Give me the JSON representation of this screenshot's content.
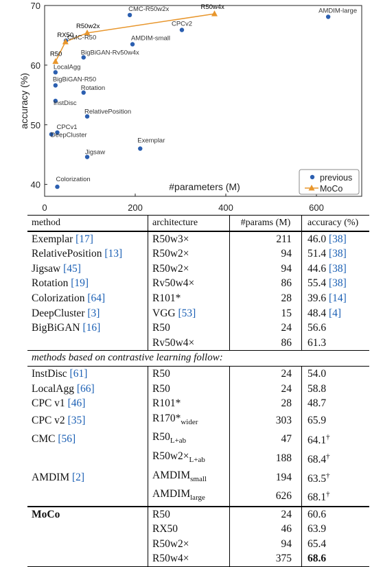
{
  "chart_data": {
    "type": "scatter",
    "xlabel": "#parameters (M)",
    "ylabel": "accuracy (%)",
    "xlim": [
      0,
      700
    ],
    "ylim": [
      38,
      70
    ],
    "xticks": [
      "0",
      "200",
      "400",
      "600"
    ],
    "yticks": [
      "40",
      "50",
      "60",
      "70"
    ],
    "legend": {
      "placement": "bottom-right",
      "entries": [
        "previous",
        "MoCo"
      ]
    },
    "colors": {
      "previous": "#2b5fb0",
      "MoCo": "#e8962c"
    },
    "series": [
      {
        "name": "previous",
        "marker": "circle",
        "points": [
          {
            "label": "Exemplar",
            "x": 211,
            "y": 46.0
          },
          {
            "label": "RelativePosition",
            "x": 94,
            "y": 51.4
          },
          {
            "label": "Jigsaw",
            "x": 94,
            "y": 44.6
          },
          {
            "label": "Rotation",
            "x": 86,
            "y": 55.4
          },
          {
            "label": "Colorization",
            "x": 28,
            "y": 39.6
          },
          {
            "label": "DeepCluster",
            "x": 15,
            "y": 48.4
          },
          {
            "label": "BigBiGAN-R50",
            "x": 24,
            "y": 56.6
          },
          {
            "label": "BigBiGAN-Rv50w4x",
            "x": 86,
            "y": 61.3
          },
          {
            "label": "InstDisc",
            "x": 24,
            "y": 54.0
          },
          {
            "label": "LocalAgg",
            "x": 24,
            "y": 58.8
          },
          {
            "label": "CPCv1",
            "x": 28,
            "y": 48.7
          },
          {
            "label": "CPCv2",
            "x": 303,
            "y": 65.9
          },
          {
            "label": "CMC-R50",
            "x": 47,
            "y": 64.1
          },
          {
            "label": "CMC-R50w2x",
            "x": 188,
            "y": 68.4
          },
          {
            "label": "AMDIM-small",
            "x": 194,
            "y": 63.5
          },
          {
            "label": "AMDIM-large",
            "x": 626,
            "y": 68.1
          }
        ]
      },
      {
        "name": "MoCo",
        "marker": "triangle",
        "line": true,
        "points": [
          {
            "label": "R50",
            "x": 24,
            "y": 60.6
          },
          {
            "label": "RX50",
            "x": 46,
            "y": 63.9
          },
          {
            "label": "R50w2x",
            "x": 94,
            "y": 65.4
          },
          {
            "label": "R50w4x",
            "x": 375,
            "y": 68.6
          }
        ]
      }
    ]
  },
  "table": {
    "headers": [
      "method",
      "architecture",
      "#params (M)",
      "accuracy (%)"
    ],
    "section_label": "methods based on contrastive learning follow:",
    "rows": [
      {
        "method": "Exemplar ",
        "method_ref": "[17]",
        "arch": "R50w3×",
        "params": "211",
        "acc": "46.0",
        "acc_ref": "[38]"
      },
      {
        "method": "RelativePosition ",
        "method_ref": "[13]",
        "arch": "R50w2×",
        "params": "94",
        "acc": "51.4",
        "acc_ref": "[38]"
      },
      {
        "method": "Jigsaw ",
        "method_ref": "[45]",
        "arch": "R50w2×",
        "params": "94",
        "acc": "44.6",
        "acc_ref": "[38]"
      },
      {
        "method": "Rotation ",
        "method_ref": "[19]",
        "arch": "Rv50w4×",
        "params": "86",
        "acc": "55.4",
        "acc_ref": "[38]"
      },
      {
        "method": "Colorization ",
        "method_ref": "[64]",
        "arch": "R101*",
        "params": "28",
        "acc": "39.6",
        "acc_ref": "[14]"
      },
      {
        "method": "DeepCluster ",
        "method_ref": "[3]",
        "arch": "VGG ",
        "arch_ref": "[53]",
        "params": "15",
        "acc": "48.4",
        "acc_ref": "[4]"
      },
      {
        "method": "BigBiGAN ",
        "method_ref": "[16]",
        "arch": "R50",
        "params": "24",
        "acc": "56.6"
      },
      {
        "method": "",
        "arch": "Rv50w4×",
        "params": "86",
        "acc": "61.3"
      },
      {
        "method": "InstDisc ",
        "method_ref": "[61]",
        "arch": "R50",
        "params": "24",
        "acc": "54.0"
      },
      {
        "method": "LocalAgg ",
        "method_ref": "[66]",
        "arch": "R50",
        "params": "24",
        "acc": "58.8"
      },
      {
        "method": "CPC v1 ",
        "method_ref": "[46]",
        "arch": "R101*",
        "params": "28",
        "acc": "48.7"
      },
      {
        "method": "CPC v2 ",
        "method_ref": "[35]",
        "arch": "R170*",
        "arch_sub": "wider",
        "params": "303",
        "acc": "65.9"
      },
      {
        "method": "CMC ",
        "method_ref": "[56]",
        "arch": "R50",
        "arch_sub": "L+ab",
        "params": "47",
        "acc": "64.1",
        "acc_sup": "†"
      },
      {
        "method": "",
        "arch": "R50w2×",
        "arch_sub": "L+ab",
        "params": "188",
        "acc": "68.4",
        "acc_sup": "†"
      },
      {
        "method": "AMDIM ",
        "method_ref": "[2]",
        "arch": "AMDIM",
        "arch_sub": "small",
        "params": "194",
        "acc": "63.5",
        "acc_sup": "†"
      },
      {
        "method": "",
        "arch": "AMDIM",
        "arch_sub": "large",
        "params": "626",
        "acc": "68.1",
        "acc_sup": "†"
      },
      {
        "method": "MoCo",
        "arch": "R50",
        "params": "24",
        "acc": "60.6"
      },
      {
        "method": "",
        "arch": "RX50",
        "params": "46",
        "acc": "63.9"
      },
      {
        "method": "",
        "arch": "R50w2×",
        "params": "94",
        "acc": "65.4"
      },
      {
        "method": "",
        "arch": "R50w4×",
        "params": "375",
        "acc": "68.6"
      }
    ]
  }
}
